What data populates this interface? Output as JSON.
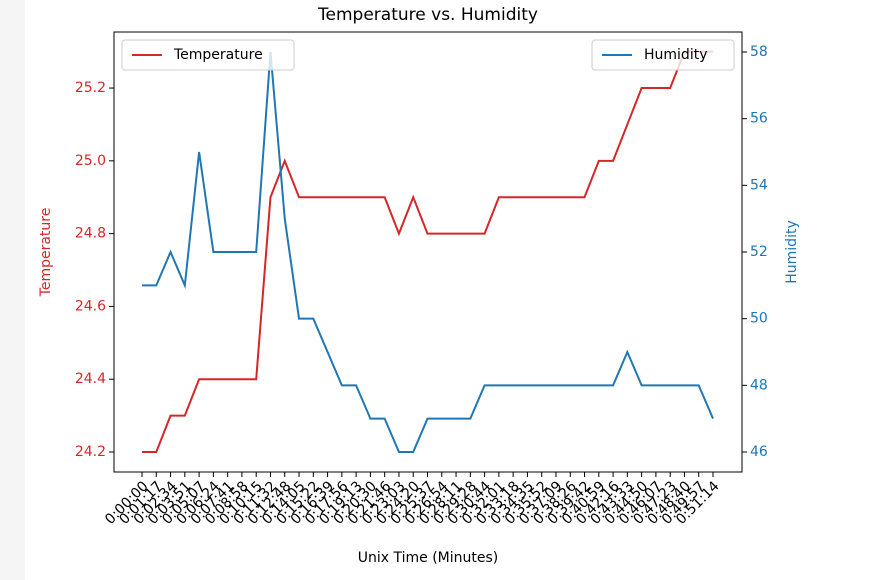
{
  "chart_data": {
    "type": "line",
    "title": "Temperature vs. Humidity",
    "xlabel": "Unix Time (Minutes)",
    "ylabel": "Temperature",
    "y2label": "Humidity",
    "categories": [
      "0:00:00",
      "0:01:17",
      "0:02:34",
      "0:03:51",
      "0:05:07",
      "0:06:24",
      "0:07:41",
      "0:08:58",
      "0:10:15",
      "0:11:32",
      "0:12:48",
      "0:14:05",
      "0:15:22",
      "0:16:39",
      "0:17:56",
      "0:19:13",
      "0:20:30",
      "0:21:46",
      "0:23:03",
      "0:24:20",
      "0:25:37",
      "0:26:54",
      "0:28:11",
      "0:29:28",
      "0:30:44",
      "0:32:01",
      "0:33:18",
      "0:34:35",
      "0:35:52",
      "0:37:09",
      "0:38:26",
      "0:39:42",
      "0:40:59",
      "0:42:16",
      "0:43:33",
      "0:44:50",
      "0:46:07",
      "0:47:23",
      "0:48:40",
      "0:49:57",
      "0:51:14"
    ],
    "series": [
      {
        "name": "Temperature",
        "color": "#d62728",
        "axis": "y",
        "legend": "upper left",
        "values": [
          24.2,
          24.2,
          24.3,
          24.3,
          24.4,
          24.4,
          24.4,
          24.4,
          24.4,
          24.9,
          25.0,
          24.9,
          24.9,
          24.9,
          24.9,
          24.9,
          24.9,
          24.9,
          24.8,
          24.9,
          24.8,
          24.8,
          24.8,
          24.8,
          24.8,
          24.9,
          24.9,
          24.9,
          24.9,
          24.9,
          24.9,
          24.9,
          25.0,
          25.0,
          25.1,
          25.2,
          25.2,
          25.2,
          25.3,
          25.3,
          25.3
        ]
      },
      {
        "name": "Humidity",
        "color": "#1f77b4",
        "axis": "y2",
        "legend": "upper right",
        "values": [
          51,
          51,
          52,
          51,
          55,
          52,
          52,
          52,
          52,
          58,
          53,
          50,
          50,
          49,
          48,
          48,
          47,
          47,
          46,
          46,
          47,
          47,
          47,
          47,
          48,
          48,
          48,
          48,
          48,
          48,
          48,
          48,
          48,
          48,
          49,
          48,
          48,
          48,
          48,
          48,
          47
        ]
      }
    ],
    "ylim": [
      24.145,
      25.354
    ],
    "yticks": [
      {
        "value": 24.2,
        "label": "24.2"
      },
      {
        "value": 24.4,
        "label": "24.4"
      },
      {
        "value": 24.6,
        "label": "24.6"
      },
      {
        "value": 24.8,
        "label": "24.8"
      },
      {
        "value": 25.0,
        "label": "25.0"
      },
      {
        "value": 25.2,
        "label": "25.2"
      }
    ],
    "y2lim": [
      45.4,
      58.6
    ],
    "y2ticks": [
      46,
      48,
      50,
      52,
      54,
      56,
      58
    ]
  }
}
